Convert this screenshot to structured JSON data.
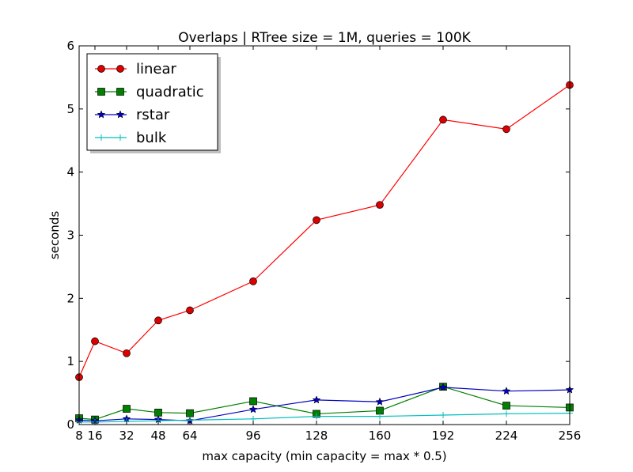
{
  "chart_data": {
    "type": "line",
    "title": "Overlaps | RTree size = 1M, queries = 100K",
    "xlabel": "max capacity (min capacity = max * 0.5)",
    "ylabel": "seconds",
    "xlim": [
      8,
      256
    ],
    "ylim": [
      0,
      6
    ],
    "x": [
      8,
      16,
      32,
      48,
      64,
      96,
      128,
      160,
      192,
      224,
      256
    ],
    "xticks": [
      "8",
      "16",
      "32",
      "48",
      "64",
      "96",
      "128",
      "160",
      "192",
      "224",
      "256"
    ],
    "yticks": [
      "0",
      "1",
      "2",
      "3",
      "4",
      "5",
      "6"
    ],
    "yticks_values": [
      0,
      1,
      2,
      3,
      4,
      5,
      6
    ],
    "grid": false,
    "legend_position": "top-left",
    "series": [
      {
        "name": "linear",
        "color": "#ff0000",
        "marker_fill": "#dd0000",
        "marker": "circle",
        "values": [
          0.75,
          1.32,
          1.13,
          1.65,
          1.81,
          2.27,
          3.24,
          3.48,
          4.83,
          4.68,
          5.38
        ]
      },
      {
        "name": "quadratic",
        "color": "#007f00",
        "marker_fill": "#007f00",
        "marker": "square",
        "values": [
          0.1,
          0.08,
          0.25,
          0.19,
          0.18,
          0.37,
          0.17,
          0.22,
          0.6,
          0.3,
          0.27
        ]
      },
      {
        "name": "rstar",
        "color": "#0000bf",
        "marker_fill": "#0000bf",
        "marker": "star",
        "values": [
          0.07,
          0.06,
          0.09,
          0.08,
          0.06,
          0.24,
          0.39,
          0.36,
          0.59,
          0.53,
          0.55
        ]
      },
      {
        "name": "bulk",
        "color": "#00bfbf",
        "marker_fill": "#00bfbf",
        "marker": "plus",
        "values": [
          0.04,
          0.04,
          0.05,
          0.06,
          0.07,
          0.09,
          0.13,
          0.13,
          0.15,
          0.17,
          0.18
        ]
      }
    ]
  }
}
